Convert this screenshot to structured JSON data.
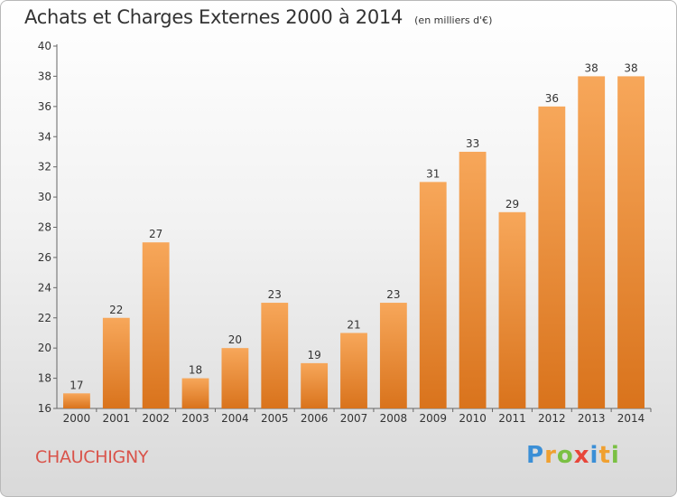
{
  "title": "Achats et Charges Externes 2000 à 2014",
  "subtitle": "(en milliers d'€)",
  "commune": "CHAUCHIGNY",
  "brand": {
    "letters": [
      "P",
      "r",
      "o",
      "x",
      "i",
      "t",
      "i"
    ],
    "colors": [
      "#3b8fd6",
      "#f0a030",
      "#7ac043",
      "#e8463a",
      "#3b8fd6",
      "#f0a030",
      "#7ac043"
    ]
  },
  "colors": {
    "bar_top": "#f7a75a",
    "bar_bottom": "#d9731c",
    "commune": "#d9534a"
  },
  "chart_data": {
    "type": "bar",
    "title": "Achats et Charges Externes 2000 à 2014",
    "subtitle": "(en milliers d'€)",
    "categories": [
      "2000",
      "2001",
      "2002",
      "2003",
      "2004",
      "2005",
      "2006",
      "2007",
      "2008",
      "2009",
      "2010",
      "2011",
      "2012",
      "2013",
      "2014"
    ],
    "values": [
      17,
      22,
      27,
      18,
      20,
      23,
      19,
      21,
      23,
      31,
      33,
      29,
      36,
      38,
      38
    ],
    "ylim": [
      16,
      40
    ],
    "yticks": [
      16,
      18,
      20,
      22,
      24,
      26,
      28,
      30,
      32,
      34,
      36,
      38,
      40
    ],
    "grid": false,
    "legend": "none"
  }
}
